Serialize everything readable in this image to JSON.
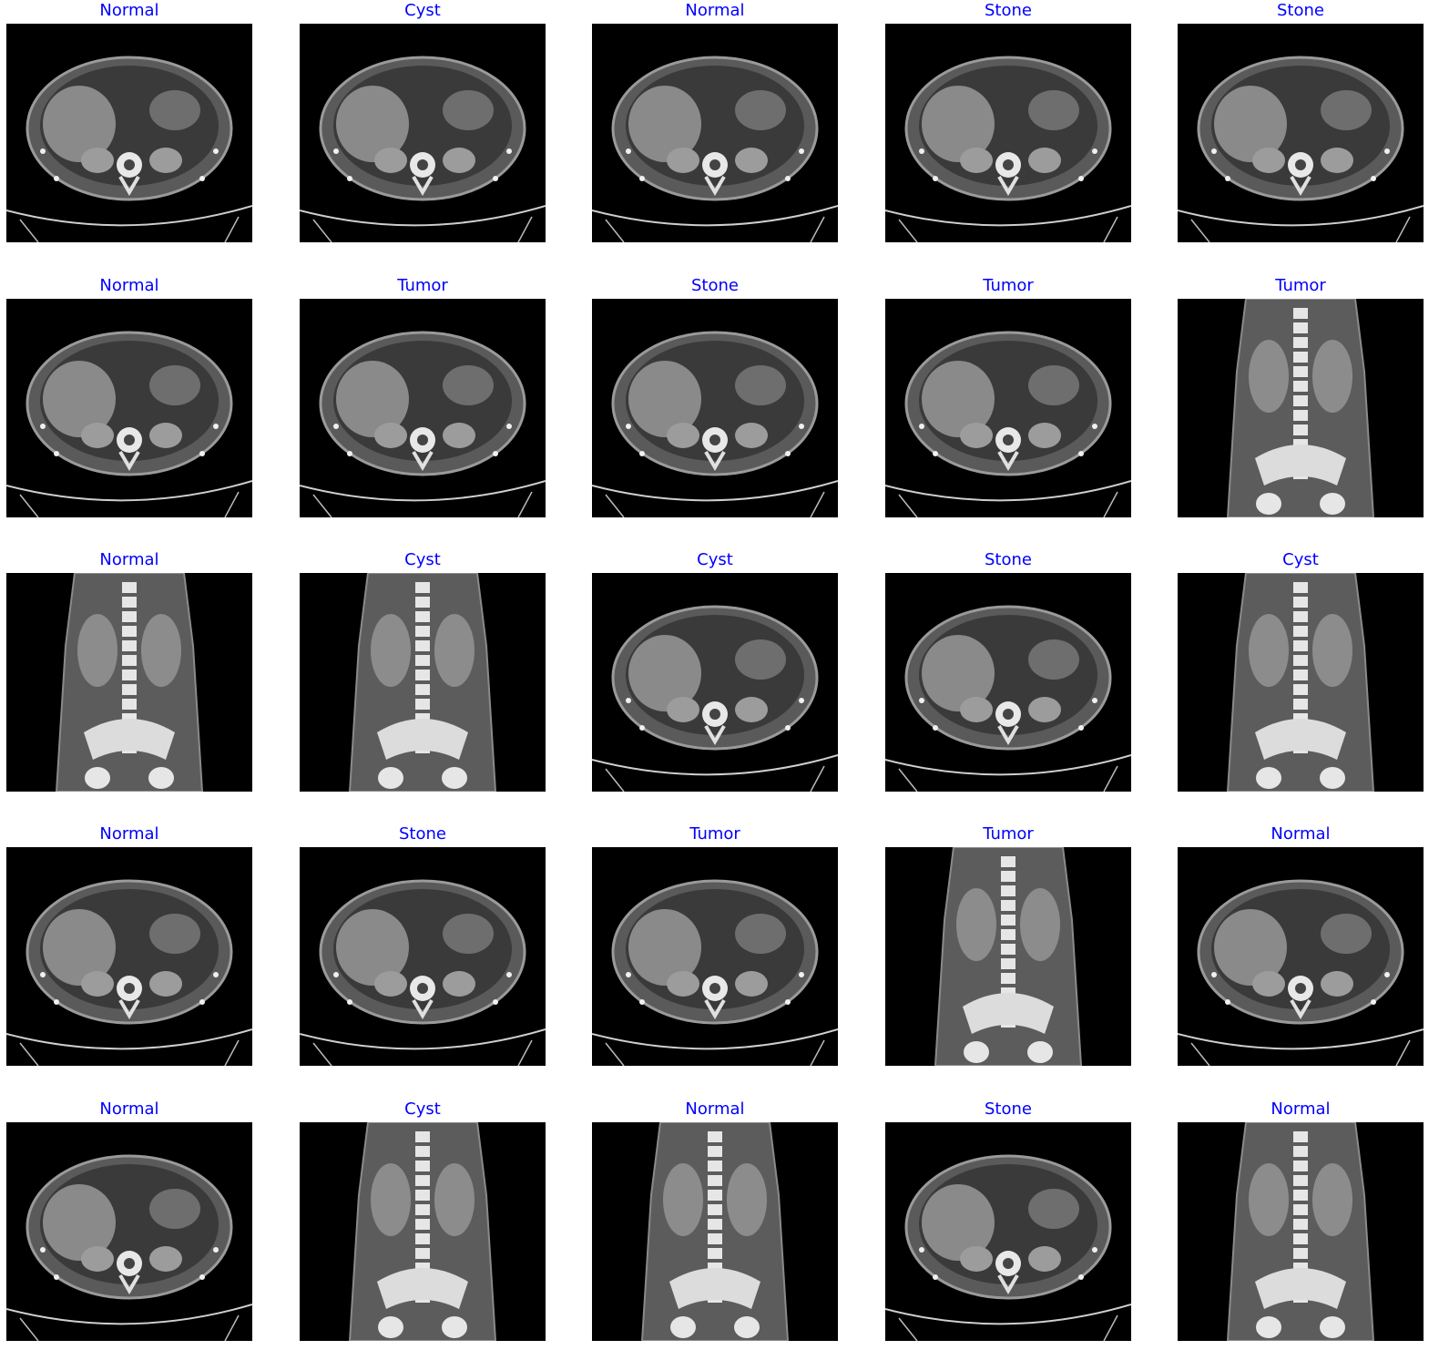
{
  "title_color": "#0000ff",
  "grid": [
    {
      "label": "Normal",
      "view": "axial"
    },
    {
      "label": "Cyst",
      "view": "axial"
    },
    {
      "label": "Normal",
      "view": "axial"
    },
    {
      "label": "Stone",
      "view": "axial"
    },
    {
      "label": "Stone",
      "view": "axial"
    },
    {
      "label": "Normal",
      "view": "axial"
    },
    {
      "label": "Tumor",
      "view": "axial"
    },
    {
      "label": "Stone",
      "view": "axial"
    },
    {
      "label": "Tumor",
      "view": "axial"
    },
    {
      "label": "Tumor",
      "view": "coronal"
    },
    {
      "label": "Normal",
      "view": "coronal"
    },
    {
      "label": "Cyst",
      "view": "coronal"
    },
    {
      "label": "Cyst",
      "view": "axial"
    },
    {
      "label": "Stone",
      "view": "axial"
    },
    {
      "label": "Cyst",
      "view": "coronal"
    },
    {
      "label": "Normal",
      "view": "axial"
    },
    {
      "label": "Stone",
      "view": "axial"
    },
    {
      "label": "Tumor",
      "view": "axial"
    },
    {
      "label": "Tumor",
      "view": "coronal"
    },
    {
      "label": "Normal",
      "view": "axial"
    },
    {
      "label": "Normal",
      "view": "axial"
    },
    {
      "label": "Cyst",
      "view": "coronal"
    },
    {
      "label": "Normal",
      "view": "coronal"
    },
    {
      "label": "Stone",
      "view": "axial"
    },
    {
      "label": "Normal",
      "view": "coronal"
    }
  ]
}
